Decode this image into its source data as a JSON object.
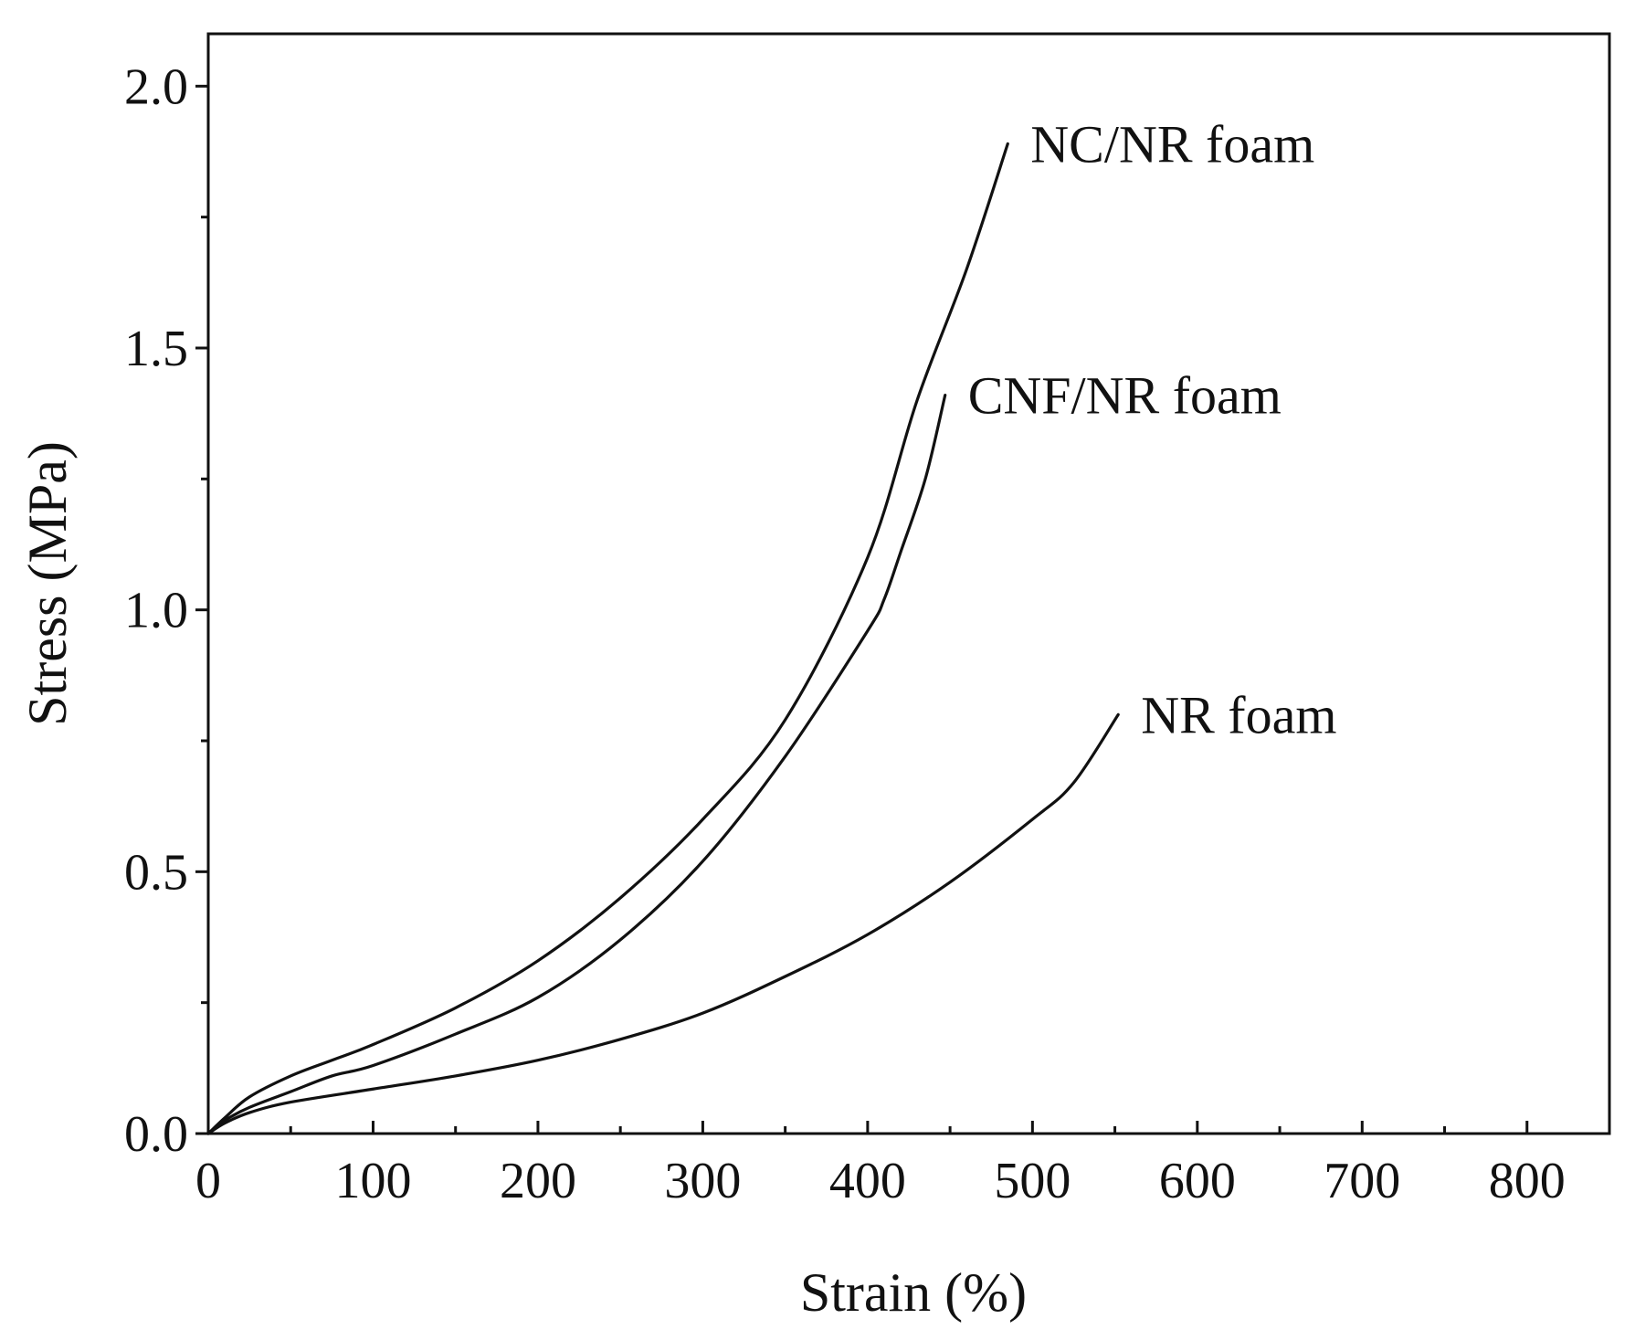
{
  "chart_data": {
    "type": "line",
    "title": "",
    "xlabel": "Strain (%)",
    "ylabel": "Stress (MPa)",
    "xlim": [
      0,
      850
    ],
    "ylim": [
      0,
      2.1
    ],
    "x_ticks": [
      0,
      100,
      200,
      300,
      400,
      500,
      600,
      700,
      800
    ],
    "x_tick_labels": [
      "0",
      "100",
      "200",
      "300",
      "400",
      "500",
      "600",
      "700",
      "800"
    ],
    "x_minor_ticks": [
      50,
      150,
      250,
      350,
      450,
      550,
      650,
      750
    ],
    "y_ticks": [
      0,
      0.5,
      1.0,
      1.5,
      2.0
    ],
    "y_tick_labels": [
      "0.0",
      "0.5",
      "1.0",
      "1.5",
      "2.0"
    ],
    "y_minor_ticks": [
      0.25,
      0.75,
      1.25,
      1.75
    ],
    "grid": false,
    "legend": "none",
    "series": [
      {
        "name": "NC/NR foam",
        "color": "#111111",
        "points": [
          [
            0,
            0
          ],
          [
            10,
            0.03
          ],
          [
            25,
            0.07
          ],
          [
            50,
            0.11
          ],
          [
            75,
            0.14
          ],
          [
            100,
            0.17
          ],
          [
            150,
            0.24
          ],
          [
            200,
            0.33
          ],
          [
            250,
            0.45
          ],
          [
            300,
            0.6
          ],
          [
            350,
            0.79
          ],
          [
            400,
            1.1
          ],
          [
            430,
            1.4
          ],
          [
            460,
            1.65
          ],
          [
            485,
            1.89
          ]
        ]
      },
      {
        "name": "CNF/NR foam",
        "color": "#111111",
        "points": [
          [
            0,
            0
          ],
          [
            10,
            0.025
          ],
          [
            25,
            0.05
          ],
          [
            50,
            0.08
          ],
          [
            75,
            0.11
          ],
          [
            100,
            0.13
          ],
          [
            150,
            0.19
          ],
          [
            200,
            0.26
          ],
          [
            250,
            0.37
          ],
          [
            300,
            0.52
          ],
          [
            350,
            0.72
          ],
          [
            400,
            0.96
          ],
          [
            410,
            1.02
          ],
          [
            420,
            1.11
          ],
          [
            435,
            1.25
          ],
          [
            447,
            1.41
          ]
        ]
      },
      {
        "name": "NR foam",
        "color": "#111111",
        "points": [
          [
            0,
            0
          ],
          [
            10,
            0.02
          ],
          [
            25,
            0.04
          ],
          [
            50,
            0.06
          ],
          [
            100,
            0.085
          ],
          [
            150,
            0.11
          ],
          [
            200,
            0.14
          ],
          [
            250,
            0.18
          ],
          [
            300,
            0.23
          ],
          [
            350,
            0.3
          ],
          [
            400,
            0.38
          ],
          [
            450,
            0.48
          ],
          [
            500,
            0.6
          ],
          [
            525,
            0.67
          ],
          [
            552,
            0.8
          ]
        ]
      }
    ]
  }
}
